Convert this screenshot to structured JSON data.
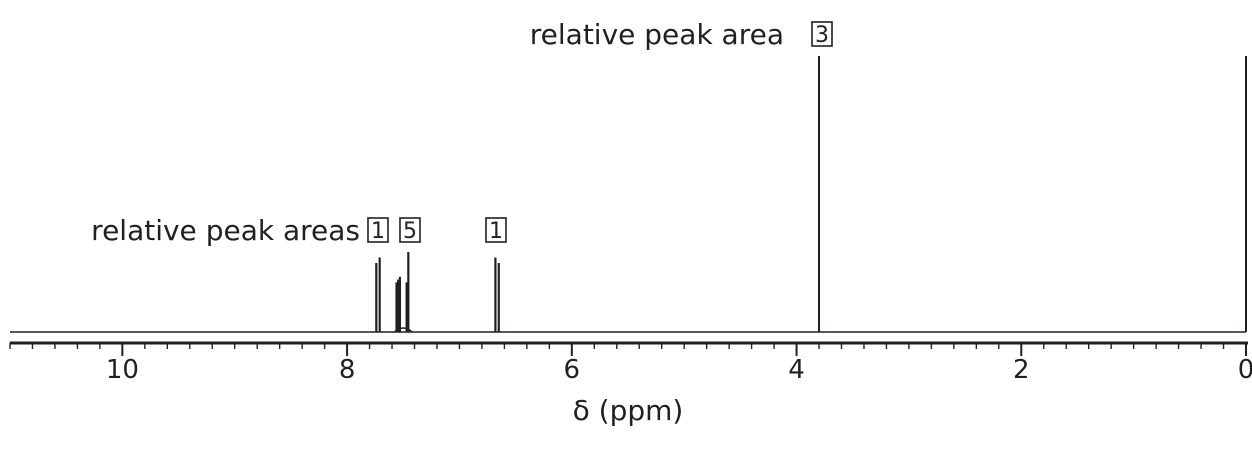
{
  "chart_data": {
    "type": "line",
    "title": "",
    "xlabel": "δ (ppm)",
    "ylabel": "",
    "xlim": [
      11.0,
      0.0
    ],
    "x_reversed": true,
    "grid": false,
    "major_ticks": [
      10,
      8,
      6,
      4,
      2,
      0
    ],
    "minor_tick_step": 0.2,
    "baseline_to": 0.3,
    "peaks": [
      {
        "ppm": 7.74,
        "height": 0.25
      },
      {
        "ppm": 7.71,
        "height": 0.27
      },
      {
        "ppm": 7.56,
        "height": 0.18
      },
      {
        "ppm": 7.545,
        "height": 0.19
      },
      {
        "ppm": 7.53,
        "height": 0.2
      },
      {
        "ppm": 7.47,
        "height": 0.18
      },
      {
        "ppm": 7.455,
        "height": 0.29
      },
      {
        "ppm": 6.68,
        "height": 0.27
      },
      {
        "ppm": 6.65,
        "height": 0.25
      },
      {
        "ppm": 3.8,
        "height": 1.0
      }
    ],
    "annotations": [
      {
        "label": "relative peak areas",
        "boxes": [
          "1"
        ],
        "near_ppm": 7.72
      },
      {
        "label": "",
        "boxes": [
          "5"
        ],
        "near_ppm": 7.5
      },
      {
        "label": "",
        "boxes": [
          "1"
        ],
        "near_ppm": 6.66
      },
      {
        "label": "relative peak area",
        "boxes": [
          "3"
        ],
        "near_ppm": 3.8
      }
    ]
  }
}
